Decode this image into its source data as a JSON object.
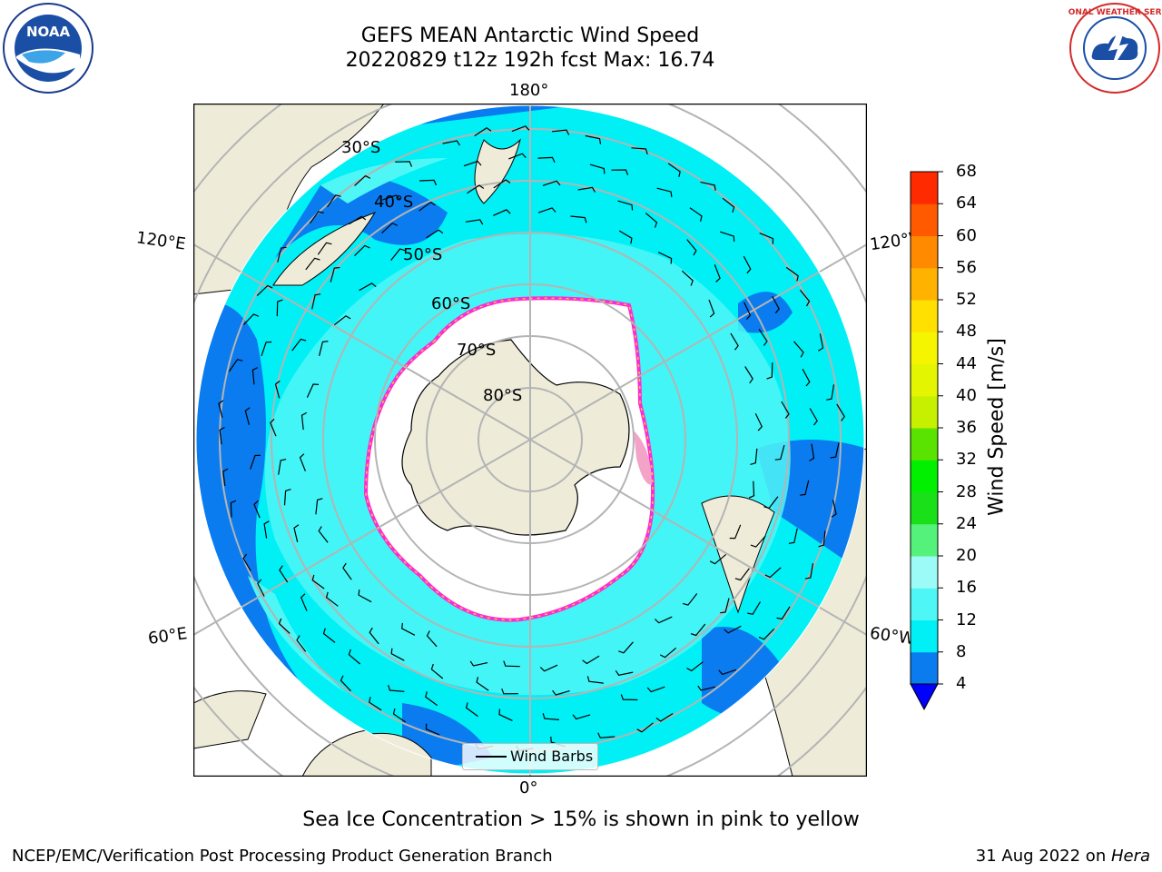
{
  "header": {
    "title_line1": "GEFS MEAN Antarctic Wind Speed",
    "title_line2": "20220829 t12z 192h fcst   Max: 16.74"
  },
  "map": {
    "lon_labels": {
      "top": "180°",
      "bottom": "0°",
      "upper_left": "120°E",
      "upper_right": "120°W",
      "lower_left": "60°E",
      "lower_right": "60°W"
    },
    "lat_labels": [
      "30°S",
      "40°S",
      "50°S",
      "60°S",
      "70°S",
      "80°S"
    ],
    "legend_label": "Wind Barbs",
    "colors": {
      "land": "#eeecd9",
      "ocean_4_8": "#0a7cf0",
      "ocean_8_12": "#00f0f5",
      "ocean_12_16": "#4ff6f6",
      "ice": "#ffffff",
      "ice_edge": "#ff2ad4",
      "ice_edge_yellow": "#f5c242",
      "grid": "#b4b4b4"
    }
  },
  "colorbar": {
    "title": "Wind Speed [m/s]",
    "ticks": [
      "4",
      "8",
      "12",
      "16",
      "20",
      "24",
      "28",
      "32",
      "36",
      "40",
      "44",
      "48",
      "52",
      "56",
      "60",
      "64",
      "68"
    ],
    "colors": [
      "#0a7cf0",
      "#00f0f5",
      "#4ff6f6",
      "#9cfbf6",
      "#55f27b",
      "#19e019",
      "#00f000",
      "#5ae300",
      "#c6f000",
      "#e3f500",
      "#f5f500",
      "#ffe000",
      "#ffb300",
      "#ff8a00",
      "#ff5a00",
      "#ff2a00",
      "#ff0000"
    ],
    "under_color": "#0000ff"
  },
  "caption": "Sea Ice Concentration > 15% is shown in pink to yellow",
  "footer": {
    "left": "NCEP/EMC/Verification Post Processing Product Generation Branch",
    "date": "31 Aug 2022 on ",
    "machine": "Hera"
  },
  "logos": {
    "left": "NOAA",
    "right": "NATIONAL WEATHER SERVICE"
  }
}
